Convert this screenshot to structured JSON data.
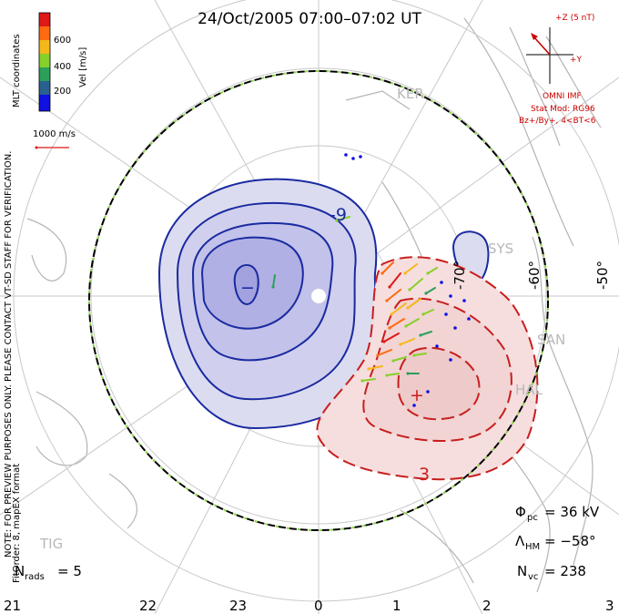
{
  "title": "24/Oct/2005 07:00–07:02 UT",
  "side_left_top": "MLT coordinates",
  "side_left_notice": "NOTE: FOR PREVIEW PURPOSES ONLY. PLEASE CONTACT VT-SD STAFF FOR VERIFICATION.",
  "side_left_bottom": "FitOrder: 8, mapEX format",
  "colorbar": {
    "label": "Vel [m/s]",
    "ticks": [
      "600",
      "400",
      "200"
    ],
    "colors": [
      "#e01818",
      "#ff6a10",
      "#f4b81a",
      "#86d02a",
      "#2aa05a",
      "#2a6090",
      "#1010e0"
    ]
  },
  "reference_vector": "1000 m/s",
  "imf": {
    "z_label": "+Z (5 nT)",
    "y_label": "+Y",
    "source": "OMNI IMF",
    "model": "Stat Mod: RG96",
    "condition": "Bz+/By+, 4<BT<6"
  },
  "stations": [
    "KER",
    "SYS",
    "SAN",
    "HAL",
    "TIG"
  ],
  "latitude_labels": [
    "-70°",
    "-60°",
    "-50°"
  ],
  "mlt_labels": [
    "21",
    "22",
    "23",
    "0",
    "1",
    "2",
    "3"
  ],
  "contour_labels": {
    "negative": "-9",
    "negative_center": "−",
    "positive": "3",
    "positive_center": "+"
  },
  "stats": {
    "n_rads_label": "N",
    "n_rads_sub": "rads",
    "n_rads_value": "= 5",
    "phi_label": "Φ",
    "phi_sub": "pc",
    "phi_value": "= 36 kV",
    "lambda_label": "Λ",
    "lambda_sub": "HM",
    "lambda_value": "= −58°",
    "nvc_label": "N",
    "nvc_sub": "vc",
    "nvc_value": "= 238"
  }
}
